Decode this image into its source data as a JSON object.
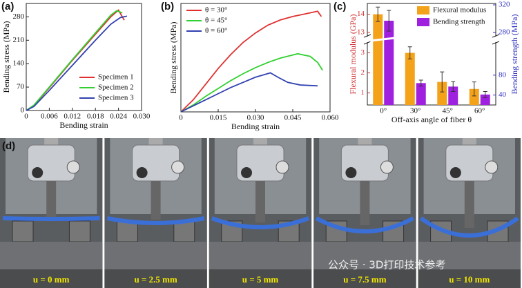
{
  "panel_labels": [
    "(a)",
    "(b)",
    "(c)",
    "(d)"
  ],
  "chart_data": [
    {
      "type": "line",
      "xlabel": "Bending strain",
      "ylabel": "Bending stress (MPa)",
      "xlim": [
        0,
        0.03
      ],
      "xticks": [
        0,
        0.006,
        0.012,
        0.018,
        0.024,
        {
          "value": 0.03,
          "label": "0.030"
        }
      ],
      "ylim": [
        0,
        320
      ],
      "yticks": [
        0,
        70,
        140,
        210,
        280
      ],
      "legend": "lower right",
      "series": [
        {
          "name": "Specimen 1",
          "color": "#e03030",
          "x": [
            0,
            0.002,
            0.006,
            0.012,
            0.018,
            0.022,
            0.024,
            0.0255
          ],
          "values": [
            0,
            15,
            68,
            150,
            228,
            280,
            300,
            270
          ]
        },
        {
          "name": "Specimen 2",
          "color": "#30d030",
          "x": [
            0,
            0.002,
            0.006,
            0.012,
            0.018,
            0.022,
            0.0235,
            0.025
          ],
          "values": [
            0,
            16,
            70,
            152,
            232,
            285,
            298,
            292
          ]
        },
        {
          "name": "Specimen 3",
          "color": "#3040b0",
          "x": [
            0,
            0.002,
            0.006,
            0.012,
            0.018,
            0.022,
            0.0245,
            0.0262
          ],
          "values": [
            0,
            12,
            60,
            135,
            210,
            258,
            278,
            282
          ]
        }
      ]
    },
    {
      "type": "line",
      "xlabel": "Bending strain",
      "ylabel": "Bending stress (MPa)",
      "xlim": [
        0,
        0.06
      ],
      "xticks": [
        0,
        0.015,
        {
          "value": 0.03,
          "label": "0.030"
        },
        0.045,
        {
          "value": 0.06,
          "label": "0.060"
        }
      ],
      "ylim": [
        0,
        125
      ],
      "legend": "upper left",
      "series": [
        {
          "name": "θ = 30°",
          "color": "#e03030",
          "x": [
            0,
            0.005,
            0.01,
            0.015,
            0.02,
            0.025,
            0.03,
            0.035,
            0.04,
            0.045,
            0.05,
            0.055,
            0.0565
          ],
          "values": [
            0,
            14,
            32,
            50,
            66,
            80,
            91,
            100,
            106,
            110,
            113,
            116,
            110
          ]
        },
        {
          "name": "θ = 45°",
          "color": "#30d030",
          "x": [
            0,
            0.005,
            0.01,
            0.015,
            0.02,
            0.025,
            0.03,
            0.035,
            0.04,
            0.047,
            0.052,
            0.055,
            0.057
          ],
          "values": [
            0,
            8,
            18,
            27,
            36,
            44,
            51,
            57,
            62,
            67,
            64,
            57,
            48
          ]
        },
        {
          "name": "θ = 60°",
          "color": "#3040b0",
          "x": [
            0,
            0.005,
            0.01,
            0.015,
            0.02,
            0.025,
            0.03,
            0.036,
            0.039,
            0.043,
            0.048,
            0.055
          ],
          "values": [
            0,
            7,
            14,
            21,
            28,
            34,
            40,
            45,
            40,
            34,
            31,
            30
          ]
        }
      ]
    },
    {
      "type": "bar",
      "xlabel": "Off-axis angle of fiber θ",
      "ylabel": "Flexural modulus (GPa)",
      "y2label": "Bending strength (MPa)",
      "categories": [
        "0°",
        "30°",
        "45°",
        "60°"
      ],
      "ylim": [
        0.4,
        14.6
      ],
      "ybreak": [
        3.5,
        12.8
      ],
      "yticks": [
        1,
        2,
        3,
        13,
        14
      ],
      "y2lim": [
        20,
        322
      ],
      "y2break": [
        145,
        275
      ],
      "y2ticks": [
        40,
        80,
        280,
        320
      ],
      "legend": "upper right",
      "series": [
        {
          "name": "Flexural modulus",
          "color": "#f5a21b",
          "values": [
            14.0,
            3.0,
            1.55,
            1.2
          ],
          "errors": [
            0.4,
            0.3,
            0.5,
            0.35
          ]
        },
        {
          "name": "Bending strength",
          "color": "#a020e0",
          "axis": "y2",
          "values": [
            297,
            64,
            57,
            41
          ],
          "errors": [
            15,
            6,
            10,
            6
          ]
        }
      ]
    }
  ],
  "photos": {
    "captions": [
      "u = 0 mm",
      "u = 2.5 mm",
      "u = 5 mm",
      "u = 7.5 mm",
      "u = 10 mm"
    ]
  },
  "watermark": "公众号 · 3D打印技术参考"
}
